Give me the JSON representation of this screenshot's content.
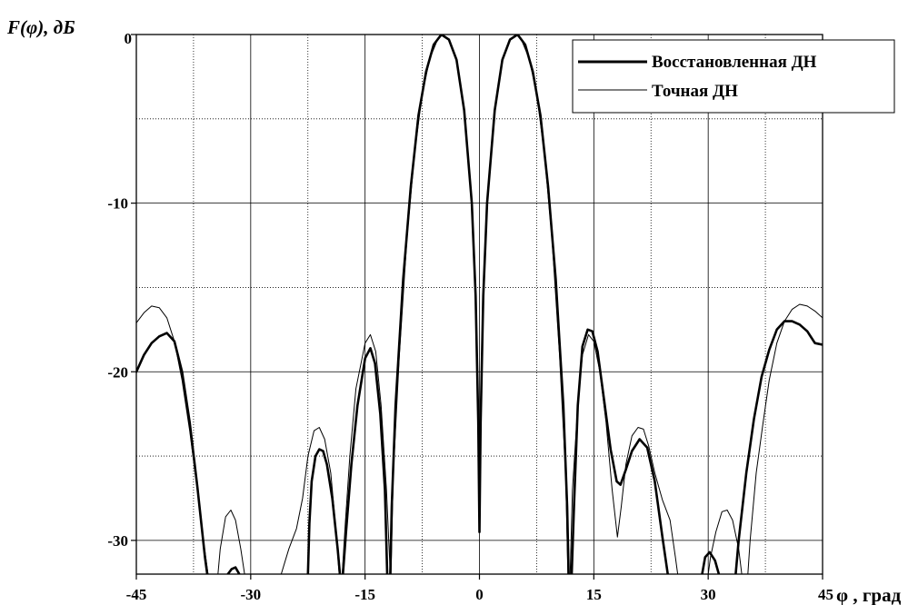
{
  "chart_data": {
    "type": "line",
    "ylabel": "F(φ), дБ",
    "xlabel": "φ , град",
    "xlim": [
      -45,
      45
    ],
    "ylim": [
      -32,
      0
    ],
    "xticks": [
      -45,
      -30,
      -15,
      0,
      15,
      30,
      45
    ],
    "xtick_labels": [
      "-45",
      "-30",
      "-15",
      "0",
      "15",
      "30",
      "45"
    ],
    "yticks": [
      0,
      -10,
      -20,
      -30
    ],
    "ytick_labels": [
      "0",
      "-10",
      "-20",
      "-30"
    ],
    "grid": {
      "major": true,
      "minor_dotted": true,
      "major_x": [
        -30,
        -15,
        0,
        15,
        30
      ],
      "minor_x": [
        -37.5,
        -22.5,
        -7.5,
        7.5,
        22.5,
        37.5
      ],
      "major_y": [
        -10,
        -20,
        -30
      ],
      "minor_y": [
        -5,
        -15,
        -25
      ]
    },
    "legend": {
      "position": "top-right"
    },
    "series": [
      {
        "name": "Восстановленная ДН",
        "style": "thick",
        "color": "#000000",
        "segments": [
          [
            [
              -45,
              -20
            ],
            [
              -44,
              -19
            ],
            [
              -43,
              -18.3
            ],
            [
              -42,
              -17.9
            ],
            [
              -41,
              -17.7
            ],
            [
              -40,
              -18.2
            ],
            [
              -39,
              -20
            ],
            [
              -38,
              -23
            ],
            [
              -37,
              -26.8
            ],
            [
              -36,
              -31
            ],
            [
              -35.7,
              -32
            ]
          ],
          [
            [
              -33,
              -32
            ],
            [
              -32.5,
              -31.7
            ],
            [
              -32,
              -31.6
            ],
            [
              -31.5,
              -32
            ]
          ],
          [
            [
              -22.5,
              -32
            ],
            [
              -22.3,
              -29
            ],
            [
              -22,
              -26.5
            ],
            [
              -21.5,
              -25
            ],
            [
              -21,
              -24.6
            ],
            [
              -20.5,
              -24.7
            ],
            [
              -20,
              -25.5
            ],
            [
              -19.3,
              -27.5
            ],
            [
              -18.6,
              -30.5
            ],
            [
              -18.3,
              -32
            ]
          ],
          [
            [
              -17.9,
              -32
            ],
            [
              -17.5,
              -29.5
            ],
            [
              -16.8,
              -25.5
            ],
            [
              -16,
              -22
            ],
            [
              -15,
              -19.2
            ],
            [
              -14.3,
              -18.6
            ],
            [
              -13.7,
              -19.5
            ],
            [
              -13,
              -22.5
            ],
            [
              -12.4,
              -27
            ],
            [
              -12.1,
              -32
            ]
          ],
          [
            [
              -11.7,
              -32
            ],
            [
              -11.5,
              -28
            ],
            [
              -11,
              -22
            ],
            [
              -10,
              -14.5
            ],
            [
              -9,
              -9
            ],
            [
              -8,
              -4.8
            ],
            [
              -7,
              -2.2
            ],
            [
              -6,
              -0.6
            ],
            [
              -5,
              0
            ],
            [
              -4,
              -0.3
            ],
            [
              -3,
              -1.5
            ],
            [
              -2,
              -4.5
            ],
            [
              -1,
              -10
            ],
            [
              -0.5,
              -15.5
            ],
            [
              -0.15,
              -23
            ],
            [
              0,
              -29.5
            ],
            [
              0.15,
              -23
            ],
            [
              0.5,
              -15.5
            ],
            [
              1,
              -10
            ],
            [
              2,
              -4.5
            ],
            [
              3,
              -1.5
            ],
            [
              4,
              -0.3
            ],
            [
              5,
              0
            ],
            [
              6,
              -0.6
            ],
            [
              7,
              -2.2
            ],
            [
              8,
              -4.8
            ],
            [
              9,
              -9
            ],
            [
              10,
              -14.5
            ],
            [
              11,
              -22
            ],
            [
              11.5,
              -28
            ],
            [
              11.7,
              -32
            ]
          ],
          [
            [
              12.1,
              -32
            ],
            [
              12.4,
              -28
            ],
            [
              12.9,
              -22
            ],
            [
              13.5,
              -18.5
            ],
            [
              14.2,
              -17.5
            ],
            [
              14.8,
              -17.6
            ],
            [
              15.5,
              -18.8
            ],
            [
              16.3,
              -21.5
            ],
            [
              17.2,
              -24.6
            ],
            [
              18,
              -26.5
            ],
            [
              18.5,
              -26.7
            ],
            [
              19.2,
              -25.8
            ],
            [
              20,
              -24.7
            ],
            [
              21,
              -24
            ],
            [
              22,
              -24.5
            ],
            [
              23,
              -26.5
            ],
            [
              24,
              -29.8
            ],
            [
              24.7,
              -32
            ]
          ],
          [
            [
              29.2,
              -32
            ],
            [
              29.6,
              -31
            ],
            [
              30.2,
              -30.7
            ],
            [
              30.9,
              -31.2
            ],
            [
              31.4,
              -32
            ]
          ],
          [
            [
              33.6,
              -32
            ],
            [
              34,
              -30
            ],
            [
              35,
              -26
            ],
            [
              36,
              -22.8
            ],
            [
              37,
              -20.3
            ],
            [
              38,
              -18.7
            ],
            [
              39,
              -17.5
            ],
            [
              40,
              -17
            ],
            [
              41,
              -17
            ],
            [
              42,
              -17.2
            ],
            [
              43,
              -17.6
            ],
            [
              44,
              -18.3
            ],
            [
              45,
              -18.4
            ]
          ]
        ]
      },
      {
        "name": "Точная ДН",
        "style": "thin",
        "color": "#000000",
        "segments": [
          [
            [
              -45,
              -17.1
            ],
            [
              -44,
              -16.5
            ],
            [
              -43,
              -16.1
            ],
            [
              -42,
              -16.2
            ],
            [
              -41,
              -16.8
            ],
            [
              -40,
              -18.2
            ],
            [
              -39,
              -20.5
            ],
            [
              -38,
              -23.5
            ],
            [
              -37,
              -27
            ],
            [
              -36.2,
              -30
            ],
            [
              -35.6,
              -32
            ]
          ],
          [
            [
              -34.3,
              -32
            ],
            [
              -34,
              -30.5
            ],
            [
              -33.3,
              -28.6
            ],
            [
              -32.6,
              -28.2
            ],
            [
              -32,
              -28.8
            ],
            [
              -31.3,
              -30.5
            ],
            [
              -30.8,
              -32
            ]
          ],
          [
            [
              -26,
              -32
            ],
            [
              -25,
              -30.5
            ],
            [
              -24,
              -29.3
            ],
            [
              -23.2,
              -27.5
            ],
            [
              -22.5,
              -25
            ],
            [
              -21.7,
              -23.5
            ],
            [
              -21,
              -23.3
            ],
            [
              -20.3,
              -24
            ],
            [
              -19.5,
              -26
            ],
            [
              -18.8,
              -29.5
            ],
            [
              -18.4,
              -32
            ]
          ],
          [
            [
              -18,
              -32
            ],
            [
              -17.6,
              -29
            ],
            [
              -17,
              -25
            ],
            [
              -16.2,
              -21
            ],
            [
              -15,
              -18.3
            ],
            [
              -14.3,
              -17.8
            ],
            [
              -13.6,
              -18.8
            ],
            [
              -12.9,
              -22
            ],
            [
              -12.2,
              -27
            ],
            [
              -11.9,
              -30
            ],
            [
              -11.7,
              -32
            ]
          ],
          [
            [
              -11.6,
              -32
            ],
            [
              -11.3,
              -26
            ],
            [
              -10.5,
              -19
            ],
            [
              -9.5,
              -12
            ],
            [
              -8.5,
              -7
            ],
            [
              -7.5,
              -3.5
            ],
            [
              -6.5,
              -1.4
            ],
            [
              -5.5,
              -0.3
            ],
            [
              -4.8,
              0
            ],
            [
              -4,
              -0.3
            ],
            [
              -3,
              -1.6
            ],
            [
              -2,
              -4.5
            ],
            [
              -1,
              -10
            ],
            [
              -0.5,
              -15.5
            ],
            [
              -0.15,
              -22
            ],
            [
              0,
              -27
            ],
            [
              0.15,
              -22
            ],
            [
              0.5,
              -15.5
            ],
            [
              1,
              -10
            ],
            [
              2,
              -4.5
            ],
            [
              3,
              -1.6
            ],
            [
              4,
              -0.3
            ],
            [
              4.8,
              0
            ],
            [
              5.5,
              -0.3
            ],
            [
              6.5,
              -1.4
            ],
            [
              7.5,
              -3.5
            ],
            [
              8.5,
              -7
            ],
            [
              9.5,
              -12
            ],
            [
              10.5,
              -19
            ],
            [
              11.3,
              -26
            ],
            [
              11.6,
              -32
            ]
          ],
          [
            [
              11.9,
              -32
            ],
            [
              12.2,
              -27
            ],
            [
              12.9,
              -22
            ],
            [
              13.5,
              -19
            ],
            [
              14.3,
              -17.8
            ],
            [
              15,
              -18.2
            ],
            [
              15.8,
              -20
            ],
            [
              16.6,
              -23
            ],
            [
              17.4,
              -27
            ],
            [
              18.1,
              -29.8
            ],
            [
              18.6,
              -28
            ],
            [
              19.2,
              -25.5
            ],
            [
              20,
              -23.8
            ],
            [
              20.8,
              -23.3
            ],
            [
              21.5,
              -23.4
            ],
            [
              22.2,
              -24.4
            ],
            [
              23,
              -26
            ],
            [
              24,
              -27.6
            ],
            [
              25,
              -28.8
            ],
            [
              25.7,
              -31
            ],
            [
              26,
              -32
            ]
          ],
          [
            [
              30,
              -32
            ],
            [
              30.3,
              -31
            ],
            [
              31,
              -29.5
            ],
            [
              31.8,
              -28.3
            ],
            [
              32.5,
              -28.2
            ],
            [
              33.2,
              -28.8
            ],
            [
              34,
              -30.5
            ],
            [
              34.4,
              -32
            ]
          ],
          [
            [
              35.2,
              -32
            ],
            [
              35.5,
              -30
            ],
            [
              36.3,
              -26
            ],
            [
              37.2,
              -23
            ],
            [
              38,
              -20.5
            ],
            [
              39,
              -18.3
            ],
            [
              40,
              -17
            ],
            [
              41,
              -16.3
            ],
            [
              42,
              -16
            ],
            [
              43,
              -16.1
            ],
            [
              44,
              -16.4
            ],
            [
              45,
              -16.8
            ]
          ]
        ]
      }
    ]
  }
}
